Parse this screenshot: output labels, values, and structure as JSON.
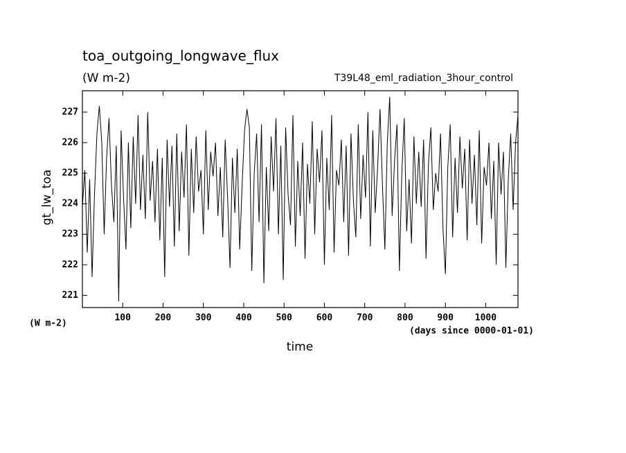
{
  "chart_data": {
    "type": "line",
    "title": "toa_outgoing_longwave_flux",
    "subtitle": "(W m-2)",
    "experiment": "T39L48_eml_radiation_3hour_control",
    "y_label": "gt_lw_toa",
    "x_label": "time",
    "y_units": "(W m-2)",
    "x_units": "(days since 0000-01-01)",
    "xlim": [
      0,
      1080
    ],
    "ylim": [
      220.6,
      227.7
    ],
    "xticks": [
      100,
      200,
      300,
      400,
      500,
      600,
      700,
      800,
      900,
      1000
    ],
    "yticks": [
      221,
      222,
      223,
      224,
      225,
      226,
      227
    ],
    "x": [
      0,
      6,
      12,
      18,
      24,
      30,
      36,
      42,
      48,
      54,
      60,
      66,
      72,
      78,
      84,
      90,
      96,
      102,
      108,
      114,
      120,
      126,
      132,
      138,
      144,
      150,
      156,
      162,
      168,
      174,
      180,
      186,
      192,
      198,
      204,
      210,
      216,
      222,
      228,
      234,
      240,
      246,
      252,
      258,
      264,
      270,
      276,
      282,
      288,
      294,
      300,
      306,
      312,
      318,
      324,
      330,
      336,
      342,
      348,
      354,
      360,
      366,
      372,
      378,
      384,
      390,
      396,
      402,
      408,
      414,
      420,
      426,
      432,
      438,
      444,
      450,
      456,
      462,
      468,
      474,
      480,
      486,
      492,
      498,
      504,
      510,
      516,
      522,
      528,
      534,
      540,
      546,
      552,
      558,
      564,
      570,
      576,
      582,
      588,
      594,
      600,
      606,
      612,
      618,
      624,
      630,
      636,
      642,
      648,
      654,
      660,
      666,
      672,
      678,
      684,
      690,
      696,
      702,
      708,
      714,
      720,
      726,
      732,
      738,
      744,
      750,
      756,
      762,
      768,
      774,
      780,
      786,
      792,
      798,
      804,
      810,
      816,
      822,
      828,
      834,
      840,
      846,
      852,
      858,
      864,
      870,
      876,
      882,
      888,
      894,
      900,
      906,
      912,
      918,
      924,
      930,
      936,
      942,
      948,
      954,
      960,
      966,
      972,
      978,
      984,
      990,
      996,
      1002,
      1008,
      1014,
      1020,
      1026,
      1032,
      1038,
      1044,
      1050,
      1056,
      1062,
      1068,
      1074,
      1080
    ],
    "series": [
      {
        "color": "#000000",
        "values": [
          223.9,
          225.1,
          222.4,
          224.8,
          221.6,
          224.3,
          226.3,
          227.2,
          226.0,
          223.0,
          225.5,
          226.8,
          224.6,
          223.4,
          225.9,
          220.8,
          226.4,
          224.2,
          222.5,
          226.0,
          223.2,
          226.2,
          224.0,
          226.9,
          223.8,
          225.6,
          223.5,
          227.0,
          224.1,
          225.4,
          223.4,
          225.8,
          222.8,
          225.5,
          221.6,
          226.1,
          223.9,
          225.9,
          222.6,
          226.3,
          223.1,
          225.7,
          224.2,
          226.6,
          222.3,
          225.8,
          223.7,
          226.2,
          224.4,
          225.1,
          223.0,
          226.4,
          223.8,
          225.7,
          224.9,
          226.0,
          223.6,
          225.2,
          222.9,
          226.1,
          224.2,
          221.9,
          225.5,
          223.7,
          225.8,
          222.5,
          224.6,
          226.4,
          227.1,
          226.5,
          221.8,
          225.0,
          226.3,
          223.4,
          226.6,
          221.4,
          225.2,
          223.1,
          226.2,
          224.4,
          226.8,
          223.0,
          225.9,
          221.5,
          226.5,
          224.3,
          223.3,
          226.9,
          222.6,
          225.4,
          223.6,
          226.0,
          222.2,
          225.3,
          224.0,
          226.7,
          223.0,
          225.8,
          224.7,
          226.4,
          222.0,
          225.5,
          223.8,
          226.9,
          222.4,
          225.1,
          224.6,
          226.1,
          223.4,
          225.9,
          222.3,
          226.3,
          224.1,
          222.9,
          226.6,
          223.5,
          225.6,
          224.2,
          227.0,
          222.6,
          226.4,
          223.7,
          225.2,
          227.1,
          224.6,
          222.5,
          226.0,
          227.5,
          223.6,
          225.4,
          226.6,
          221.8,
          225.0,
          226.8,
          223.1,
          224.8,
          222.7,
          226.2,
          224.0,
          225.7,
          223.9,
          226.1,
          222.2,
          225.3,
          226.5,
          223.8,
          225.0,
          224.4,
          226.3,
          223.2,
          221.7,
          225.2,
          226.6,
          222.9,
          225.5,
          223.7,
          226.2,
          224.5,
          225.8,
          222.8,
          226.1,
          224.0,
          225.6,
          223.3,
          226.4,
          222.7,
          225.2,
          224.6,
          226.0,
          223.5,
          225.4,
          222.0,
          226.0,
          224.3,
          225.7,
          221.9,
          224.8,
          226.3,
          223.8,
          226.0,
          226.9
        ]
      }
    ]
  }
}
